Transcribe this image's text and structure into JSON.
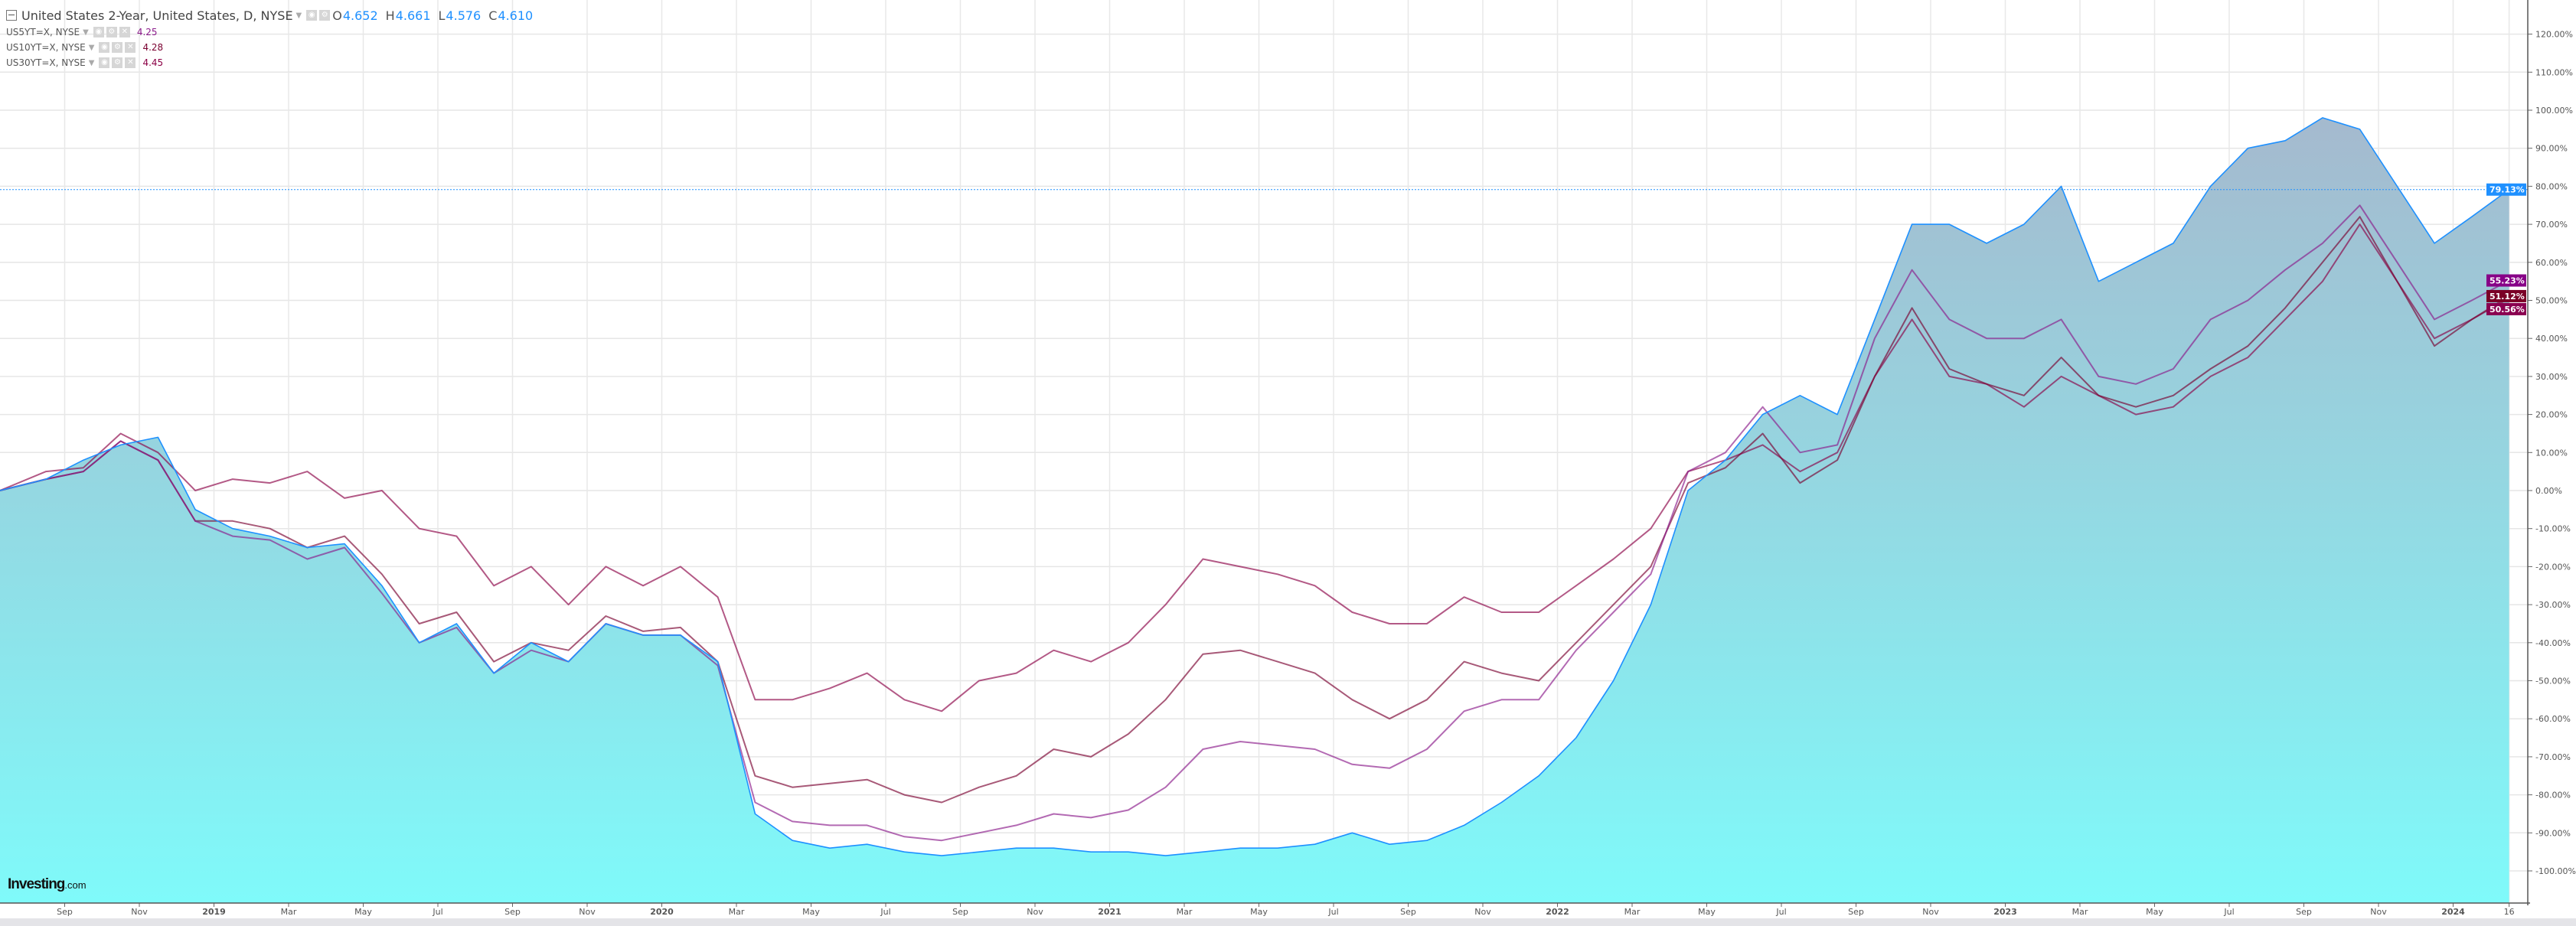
{
  "legend": {
    "main": {
      "title": "United States 2-Year, United States, D, NYSE",
      "o_label": "O",
      "o": "4.652",
      "h_label": "H",
      "h": "4.661",
      "l_label": "L",
      "l": "4.576",
      "c_label": "C",
      "c": "4.610"
    },
    "subs": [
      {
        "name": "US5YT=X, NYSE",
        "value": "4.25",
        "color": "#8b1a8b"
      },
      {
        "name": "US10YT=X, NYSE",
        "value": "4.28",
        "color": "#7a0030"
      },
      {
        "name": "US30YT=X, NYSE",
        "value": "4.45",
        "color": "#8b0045"
      }
    ]
  },
  "logo": {
    "brand": "Investing",
    "suffix": ".com"
  },
  "chart_data": {
    "type": "line",
    "y_axis": {
      "min": -100,
      "max": 120,
      "step": 10,
      "unit": "%",
      "position": "right"
    },
    "x_tick_labels": [
      {
        "date": "2018-09",
        "label": "Sep"
      },
      {
        "date": "2018-11",
        "label": "Nov"
      },
      {
        "date": "2019-01",
        "label": "2019",
        "year": true
      },
      {
        "date": "2019-03",
        "label": "Mar"
      },
      {
        "date": "2019-05",
        "label": "May"
      },
      {
        "date": "2019-07",
        "label": "Jul"
      },
      {
        "date": "2019-09",
        "label": "Sep"
      },
      {
        "date": "2019-11",
        "label": "Nov"
      },
      {
        "date": "2020-01",
        "label": "2020",
        "year": true
      },
      {
        "date": "2020-03",
        "label": "Mar"
      },
      {
        "date": "2020-05",
        "label": "May"
      },
      {
        "date": "2020-07",
        "label": "Jul"
      },
      {
        "date": "2020-09",
        "label": "Sep"
      },
      {
        "date": "2020-11",
        "label": "Nov"
      },
      {
        "date": "2021-01",
        "label": "2021",
        "year": true
      },
      {
        "date": "2021-03",
        "label": "Mar"
      },
      {
        "date": "2021-05",
        "label": "May"
      },
      {
        "date": "2021-07",
        "label": "Jul"
      },
      {
        "date": "2021-09",
        "label": "Sep"
      },
      {
        "date": "2021-11",
        "label": "Nov"
      },
      {
        "date": "2022-01",
        "label": "2022",
        "year": true
      },
      {
        "date": "2022-03",
        "label": "Mar"
      },
      {
        "date": "2022-05",
        "label": "May"
      },
      {
        "date": "2022-07",
        "label": "Jul"
      },
      {
        "date": "2022-09",
        "label": "Sep"
      },
      {
        "date": "2022-11",
        "label": "Nov"
      },
      {
        "date": "2023-01",
        "label": "2023",
        "year": true
      },
      {
        "date": "2023-03",
        "label": "Mar"
      },
      {
        "date": "2023-05",
        "label": "May"
      },
      {
        "date": "2023-07",
        "label": "Jul"
      },
      {
        "date": "2023-09",
        "label": "Sep"
      },
      {
        "date": "2023-11",
        "label": "Nov"
      },
      {
        "date": "2024-01",
        "label": "2024",
        "year": true
      },
      {
        "date": "2024-02-16",
        "label": "16"
      }
    ],
    "x": [
      "2018-07",
      "2018-08",
      "2018-09",
      "2018-10",
      "2018-11",
      "2018-12",
      "2019-01",
      "2019-02",
      "2019-03",
      "2019-04",
      "2019-05",
      "2019-06",
      "2019-07",
      "2019-08",
      "2019-09",
      "2019-10",
      "2019-11",
      "2019-12",
      "2020-01",
      "2020-02",
      "2020-03",
      "2020-04",
      "2020-05",
      "2020-06",
      "2020-07",
      "2020-08",
      "2020-09",
      "2020-10",
      "2020-11",
      "2020-12",
      "2021-01",
      "2021-02",
      "2021-03",
      "2021-04",
      "2021-05",
      "2021-06",
      "2021-07",
      "2021-08",
      "2021-09",
      "2021-10",
      "2021-11",
      "2021-12",
      "2022-01",
      "2022-02",
      "2022-03",
      "2022-04",
      "2022-05",
      "2022-06",
      "2022-07",
      "2022-08",
      "2022-09",
      "2022-10",
      "2022-11",
      "2022-12",
      "2023-01",
      "2023-02",
      "2023-03",
      "2023-04",
      "2023-05",
      "2023-06",
      "2023-07",
      "2023-08",
      "2023-09",
      "2023-10",
      "2023-11",
      "2023-12",
      "2024-01",
      "2024-02-16"
    ],
    "series": [
      {
        "name": "United States 2-Year",
        "color": "#1e90ff",
        "fill": true,
        "last_label": "79.13%",
        "values": [
          0,
          3,
          8,
          12,
          14,
          -5,
          -10,
          -12,
          -15,
          -14,
          -25,
          -40,
          -35,
          -48,
          -40,
          -45,
          -35,
          -38,
          -38,
          -45,
          -85,
          -92,
          -94,
          -93,
          -95,
          -96,
          -95,
          -94,
          -94,
          -95,
          -95,
          -96,
          -95,
          -94,
          -94,
          -93,
          -90,
          -93,
          -92,
          -88,
          -82,
          -75,
          -65,
          -50,
          -30,
          0,
          8,
          20,
          25,
          20,
          45,
          70,
          70,
          65,
          70,
          80,
          55,
          60,
          65,
          80,
          90,
          92,
          98,
          95,
          80,
          65,
          72,
          79.13
        ]
      },
      {
        "name": "US5YT=X, NYSE",
        "color": "#8b1a8b",
        "last_label": "55.23%",
        "values": [
          0,
          3,
          5,
          13,
          8,
          -8,
          -12,
          -13,
          -18,
          -15,
          -27,
          -40,
          -36,
          -48,
          -42,
          -45,
          -35,
          -38,
          -38,
          -46,
          -82,
          -87,
          -88,
          -88,
          -91,
          -92,
          -90,
          -88,
          -85,
          -86,
          -84,
          -78,
          -68,
          -66,
          -67,
          -68,
          -72,
          -73,
          -68,
          -58,
          -55,
          -55,
          -42,
          -32,
          -22,
          5,
          10,
          22,
          10,
          12,
          40,
          58,
          45,
          40,
          40,
          45,
          30,
          28,
          32,
          45,
          50,
          58,
          65,
          75,
          60,
          45,
          50,
          55.23
        ]
      },
      {
        "name": "US10YT=X, NYSE",
        "color": "#7a0030",
        "last_label": "51.12%",
        "values": [
          0,
          3,
          5,
          13,
          8,
          -8,
          -8,
          -10,
          -15,
          -12,
          -22,
          -35,
          -32,
          -45,
          -40,
          -42,
          -33,
          -37,
          -36,
          -45,
          -75,
          -78,
          -77,
          -76,
          -80,
          -82,
          -78,
          -75,
          -68,
          -70,
          -64,
          -55,
          -43,
          -42,
          -45,
          -48,
          -55,
          -60,
          -55,
          -45,
          -48,
          -50,
          -40,
          -30,
          -20,
          2,
          6,
          15,
          2,
          8,
          30,
          48,
          32,
          28,
          25,
          35,
          25,
          22,
          25,
          32,
          38,
          48,
          60,
          72,
          55,
          38,
          45,
          51.12
        ]
      },
      {
        "name": "US30YT=X, NYSE",
        "color": "#8b0045",
        "last_label": "50.56%",
        "values": [
          0,
          5,
          6,
          15,
          10,
          0,
          3,
          2,
          5,
          -2,
          0,
          -10,
          -12,
          -25,
          -20,
          -30,
          -20,
          -25,
          -20,
          -28,
          -55,
          -55,
          -52,
          -48,
          -55,
          -58,
          -50,
          -48,
          -42,
          -45,
          -40,
          -30,
          -18,
          -20,
          -22,
          -25,
          -32,
          -35,
          -35,
          -28,
          -32,
          -32,
          -25,
          -18,
          -10,
          5,
          8,
          12,
          5,
          10,
          30,
          45,
          30,
          28,
          22,
          30,
          25,
          20,
          22,
          30,
          35,
          45,
          55,
          70,
          55,
          40,
          45,
          50.56
        ]
      }
    ],
    "reference_line": {
      "value": 79.13,
      "color": "#1e90ff",
      "style": "dashed"
    },
    "grid": true,
    "legend_position": "top-left"
  }
}
